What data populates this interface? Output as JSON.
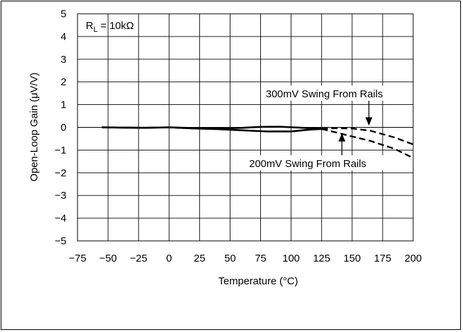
{
  "chart_data": {
    "type": "line",
    "xlabel": "Temperature (°C)",
    "ylabel": "Open-Loop Gain (μV/V)",
    "xlim": [
      -75,
      200
    ],
    "ylim": [
      -5,
      5
    ],
    "x_ticks": [
      "−75",
      "−50",
      "−25",
      "0",
      "25",
      "50",
      "75",
      "100",
      "125",
      "150",
      "175",
      "200"
    ],
    "y_ticks": [
      "5",
      "4",
      "3",
      "2",
      "1",
      "0",
      "−1",
      "−2",
      "−3",
      "−4",
      "−5"
    ],
    "grid": true,
    "condition_label": {
      "main": "R",
      "sub": "L",
      "rest": " = 10kΩ"
    },
    "annotations": [
      {
        "text": "300mV Swing From Rails"
      },
      {
        "text": "200mV Swing From Rails"
      }
    ],
    "series": [
      {
        "name": "300mV Swing From Rails",
        "x": [
          -55,
          -40,
          -20,
          0,
          20,
          40,
          60,
          75,
          90,
          110,
          125,
          135,
          150,
          165,
          185,
          200
        ],
        "y": [
          0.0,
          -0.01,
          -0.02,
          0.0,
          -0.03,
          -0.05,
          -0.02,
          0.02,
          0.03,
          -0.02,
          -0.06,
          -0.04,
          -0.05,
          -0.15,
          -0.45,
          -0.75
        ]
      },
      {
        "name": "200mV Swing From Rails",
        "x": [
          -55,
          -40,
          -20,
          0,
          20,
          40,
          60,
          80,
          100,
          115,
          125,
          135,
          150,
          165,
          185,
          200
        ],
        "y": [
          0.0,
          -0.01,
          -0.02,
          0.0,
          -0.05,
          -0.08,
          -0.13,
          -0.18,
          -0.18,
          -0.1,
          -0.07,
          -0.2,
          -0.4,
          -0.6,
          -0.95,
          -1.35
        ]
      }
    ]
  }
}
